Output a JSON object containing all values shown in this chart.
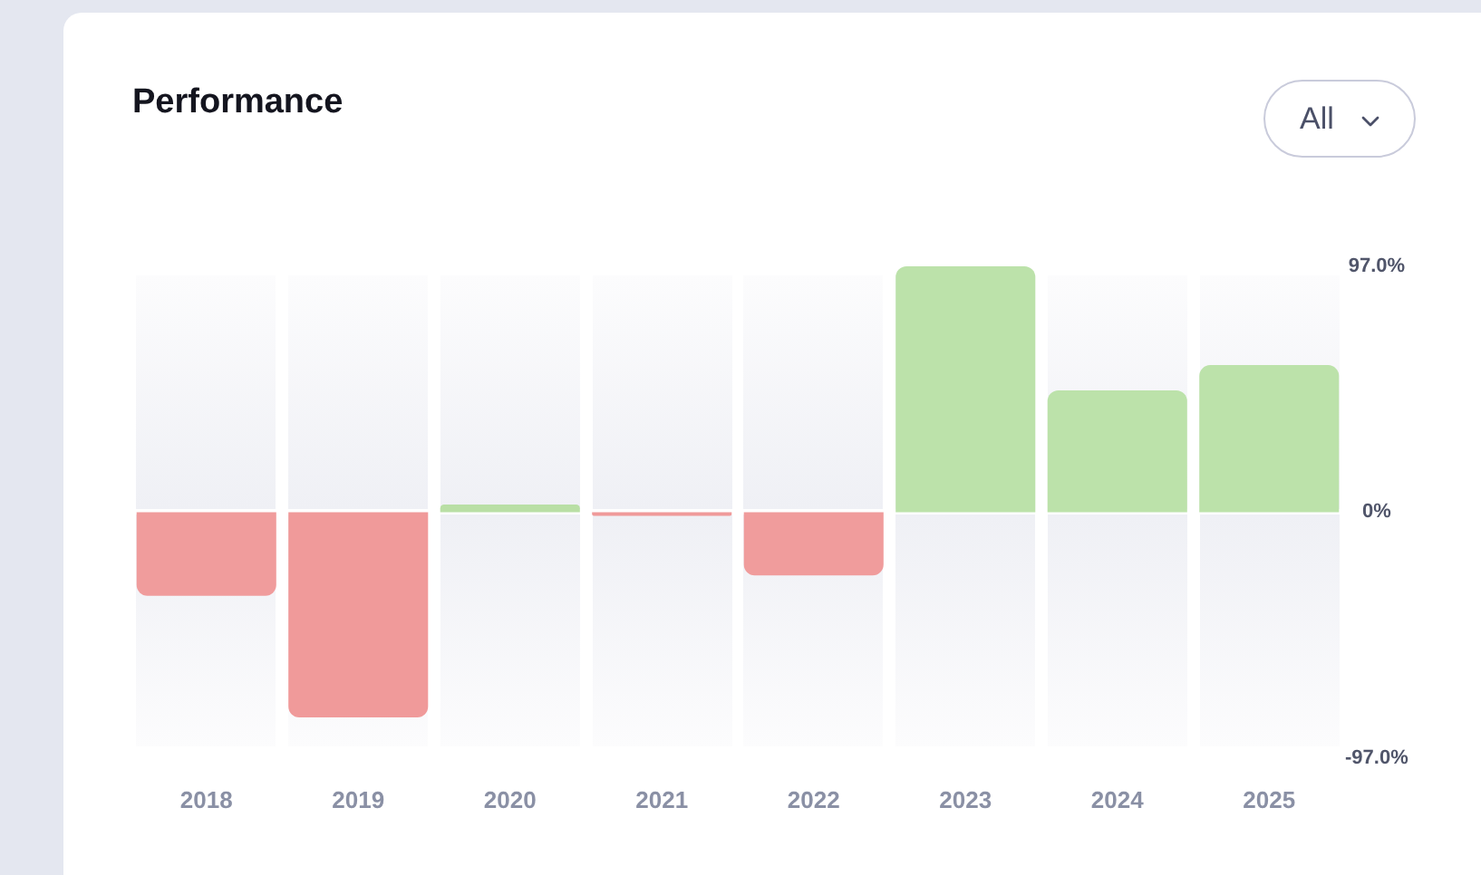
{
  "chart_data": {
    "type": "bar",
    "title": "Performance",
    "annotations": [
      "All"
    ],
    "categories": [
      "2018",
      "2019",
      "2020",
      "2021",
      "2022",
      "2023",
      "2024",
      "2025"
    ],
    "values": [
      -33,
      -81,
      3,
      -1.5,
      -25,
      97,
      48,
      58
    ],
    "colors": [
      "#f09c9c",
      "#f09a9a",
      "#b9dfa5",
      "#f09a9a",
      "#f09c9c",
      "#bce2aa",
      "#bce2aa",
      "#bce2aa"
    ],
    "ylim": [
      -97,
      97
    ],
    "yticks": [
      {
        "value": -97,
        "label": "-97.0%"
      },
      {
        "value": 0,
        "label": "0%"
      },
      {
        "value": 97,
        "label": "97.0%"
      }
    ]
  }
}
